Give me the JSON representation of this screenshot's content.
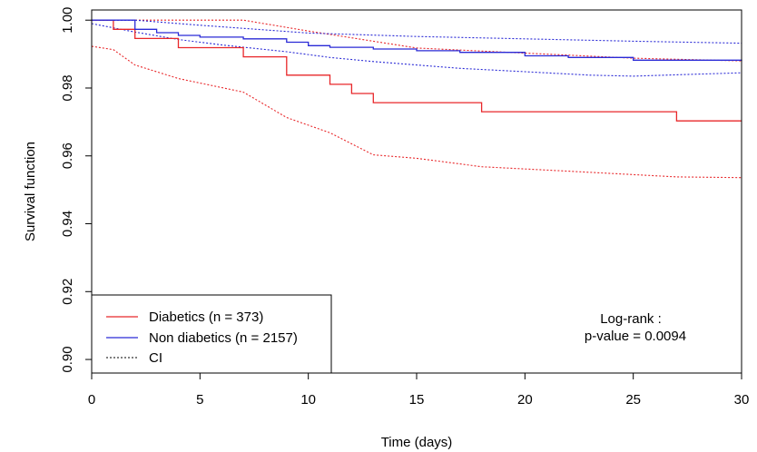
{
  "chart_data": {
    "type": "line",
    "title": "",
    "xlabel": "Time (days)",
    "ylabel": "Survival function",
    "xlim": [
      0,
      30
    ],
    "ylim": [
      0.896,
      1.003
    ],
    "xticks": [
      0,
      5,
      10,
      15,
      20,
      25,
      30
    ],
    "xtick_labels": [
      "0",
      "5",
      "10",
      "15",
      "20",
      "25",
      "30"
    ],
    "yticks": [
      0.9,
      0.92,
      0.94,
      0.96,
      0.98,
      1.0
    ],
    "ytick_labels": [
      "0.90",
      "0.92",
      "0.94",
      "0.96",
      "0.98",
      "1.00"
    ],
    "grid": false,
    "legend_position": "bottom-left",
    "series": [
      {
        "name": "Diabetics (n = 373)",
        "color": "#e8272a",
        "style": "step",
        "x": [
          0,
          1,
          2,
          4,
          7,
          9,
          11,
          12,
          13,
          18,
          27,
          30
        ],
        "y": [
          1.0,
          0.9973,
          0.9946,
          0.9919,
          0.9892,
          0.9838,
          0.9811,
          0.9784,
          0.9757,
          0.973,
          0.9703,
          0.9703
        ]
      },
      {
        "name": "Non diabetics (n = 2157)",
        "color": "#2a2ad6",
        "style": "step",
        "x": [
          0,
          2,
          3,
          4,
          5,
          7,
          9,
          10,
          11,
          13,
          15,
          17,
          20,
          22,
          25,
          30
        ],
        "y": [
          1.0,
          0.9973,
          0.9963,
          0.9955,
          0.995,
          0.9945,
          0.9935,
          0.9925,
          0.992,
          0.9915,
          0.991,
          0.9905,
          0.9895,
          0.989,
          0.9882,
          0.988
        ]
      },
      {
        "name": "CI",
        "color": "#000000",
        "style": "dotted",
        "x": [],
        "y": []
      }
    ],
    "ci_bands": [
      {
        "series": "Diabetics (n = 373)",
        "color": "#e8272a",
        "upper": {
          "x": [
            0,
            7,
            10,
            13,
            15,
            20,
            25,
            30
          ],
          "y": [
            1.0,
            1.0,
            0.9968,
            0.9938,
            0.9918,
            0.9903,
            0.9888,
            0.988
          ]
        },
        "lower": {
          "x": [
            0,
            1,
            2,
            4,
            7,
            9,
            11,
            13,
            15,
            18,
            22,
            27,
            30
          ],
          "y": [
            0.9923,
            0.9913,
            0.9868,
            0.9828,
            0.9788,
            0.9713,
            0.9668,
            0.9603,
            0.9593,
            0.9568,
            0.9555,
            0.9538,
            0.9536
          ]
        }
      },
      {
        "series": "Non diabetics (n = 2157)",
        "color": "#2a2ad6",
        "upper": {
          "x": [
            0,
            2,
            5,
            10,
            15,
            20,
            25,
            30
          ],
          "y": [
            1.0,
            1.0,
            0.9985,
            0.9962,
            0.9952,
            0.9945,
            0.9938,
            0.9932
          ]
        },
        "lower": {
          "x": [
            0,
            2,
            4,
            6,
            9,
            11,
            13,
            15,
            17,
            20,
            23,
            25,
            30
          ],
          "y": [
            0.999,
            0.9965,
            0.9943,
            0.9927,
            0.9907,
            0.989,
            0.9878,
            0.9868,
            0.9858,
            0.9848,
            0.9838,
            0.9835,
            0.9845
          ]
        }
      }
    ],
    "annotations": [
      "Log-rank :",
      "p-value = 0.0094"
    ]
  }
}
